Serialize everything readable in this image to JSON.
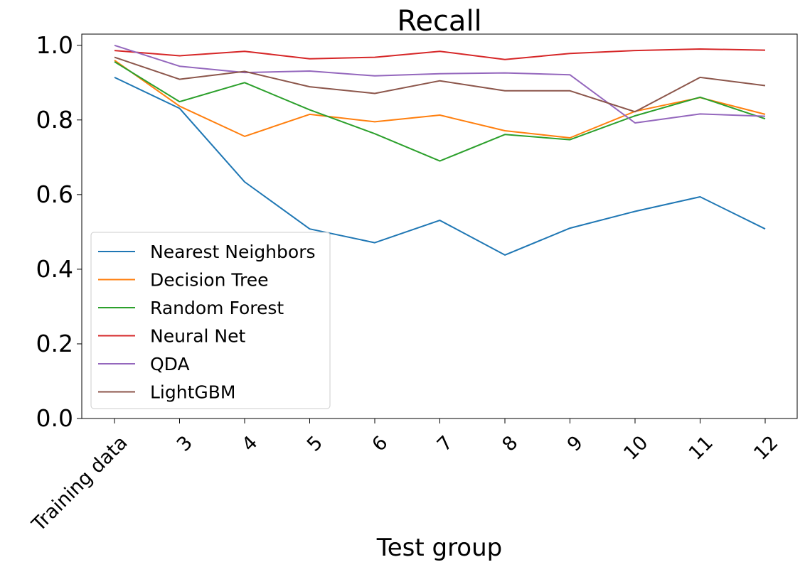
{
  "chart_data": {
    "type": "line",
    "title": "Recall",
    "xlabel": "Test group",
    "ylabel": "",
    "categories": [
      "Training data",
      "3",
      "4",
      "5",
      "6",
      "7",
      "8",
      "9",
      "10",
      "11",
      "12"
    ],
    "ylim": [
      0,
      1.03
    ],
    "yticks": [
      "0.0",
      "0.2",
      "0.4",
      "0.6",
      "0.8",
      "1.0"
    ],
    "ytick_values": [
      0,
      0.2,
      0.4,
      0.6,
      0.8,
      1.0
    ],
    "grid": false,
    "legend": "lower-left",
    "series": [
      {
        "name": "Nearest Neighbors",
        "color": "#1f77b4",
        "values": [
          0.914,
          0.831,
          0.634,
          0.508,
          0.471,
          0.531,
          0.438,
          0.51,
          0.555,
          0.594,
          0.508
        ]
      },
      {
        "name": "Decision Tree",
        "color": "#ff7f0e",
        "values": [
          0.96,
          0.837,
          0.756,
          0.815,
          0.795,
          0.813,
          0.771,
          0.752,
          0.823,
          0.86,
          0.815
        ]
      },
      {
        "name": "Random Forest",
        "color": "#2ca02c",
        "values": [
          0.956,
          0.849,
          0.9,
          0.827,
          0.763,
          0.69,
          0.761,
          0.747,
          0.811,
          0.861,
          0.803
        ]
      },
      {
        "name": "Neural Net",
        "color": "#d62728",
        "values": [
          0.986,
          0.972,
          0.984,
          0.964,
          0.968,
          0.984,
          0.962,
          0.978,
          0.986,
          0.99,
          0.987
        ]
      },
      {
        "name": "QDA",
        "color": "#9467bd",
        "values": [
          1.0,
          0.944,
          0.927,
          0.931,
          0.918,
          0.924,
          0.926,
          0.921,
          0.792,
          0.816,
          0.81
        ]
      },
      {
        "name": "LightGBM",
        "color": "#8c564b",
        "values": [
          0.968,
          0.909,
          0.93,
          0.889,
          0.871,
          0.905,
          0.878,
          0.878,
          0.822,
          0.914,
          0.892
        ]
      }
    ]
  }
}
